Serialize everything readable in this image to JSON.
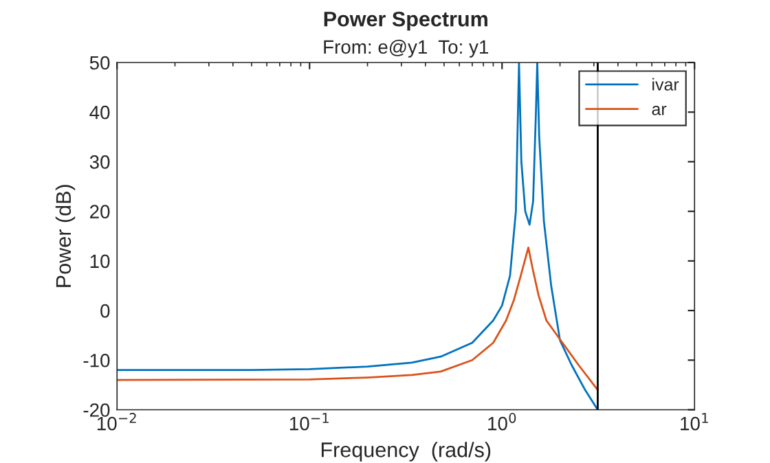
{
  "chart_data": {
    "type": "line",
    "title": "Power Spectrum",
    "subtitle": "From: e@y1  To: y1",
    "xlabel": "Frequency  (rad/s)",
    "ylabel": "Power (dB)",
    "log": "x",
    "xlim": [
      0.01,
      10
    ],
    "xticks": [
      {
        "value": 0.01,
        "label": "10$^{−2}$"
      },
      {
        "value": 0.1,
        "label": "10$^{−1}$"
      },
      {
        "value": 1,
        "label": "10$^{0}$"
      },
      {
        "value": 10,
        "label": "10$^{1}$"
      }
    ],
    "ylim": [
      -20,
      50
    ],
    "yticks": [
      -20,
      -10,
      0,
      10,
      20,
      30,
      40,
      50
    ],
    "grid": false,
    "legend": "top right",
    "line_style": "solid",
    "marker": "none",
    "ref_lines": [
      {
        "axis": "x",
        "value": 3.1416,
        "color": "#000000"
      }
    ],
    "series": [
      {
        "name": "ivar",
        "color": "#0072bd",
        "x": [
          0.01,
          0.05,
          0.1,
          0.2,
          0.34,
          0.48,
          0.7,
          0.9,
          1.0,
          1.1,
          1.18,
          1.225,
          1.26,
          1.32,
          1.39,
          1.45,
          1.5,
          1.524,
          1.56,
          1.65,
          1.8,
          2.0,
          2.3,
          2.7,
          3.14
        ],
        "values": [
          -12,
          -12,
          -11.8,
          -11.3,
          -10.5,
          -9.3,
          -6.5,
          -2,
          1,
          7,
          20,
          50,
          30,
          20,
          17.3,
          22,
          40,
          50,
          35,
          18,
          5,
          -6,
          -11,
          -16,
          -20
        ]
      },
      {
        "name": "ar",
        "color": "#d95319",
        "x": [
          0.01,
          0.1,
          0.2,
          0.34,
          0.48,
          0.7,
          0.9,
          1.05,
          1.15,
          1.25,
          1.37,
          1.45,
          1.55,
          1.7,
          2.0,
          2.5,
          3.14
        ],
        "values": [
          -14,
          -13.9,
          -13.5,
          -13,
          -12.3,
          -10,
          -6.5,
          -2,
          2,
          7,
          12.7,
          8,
          3,
          -2,
          -5.8,
          -11,
          -16
        ]
      }
    ]
  }
}
